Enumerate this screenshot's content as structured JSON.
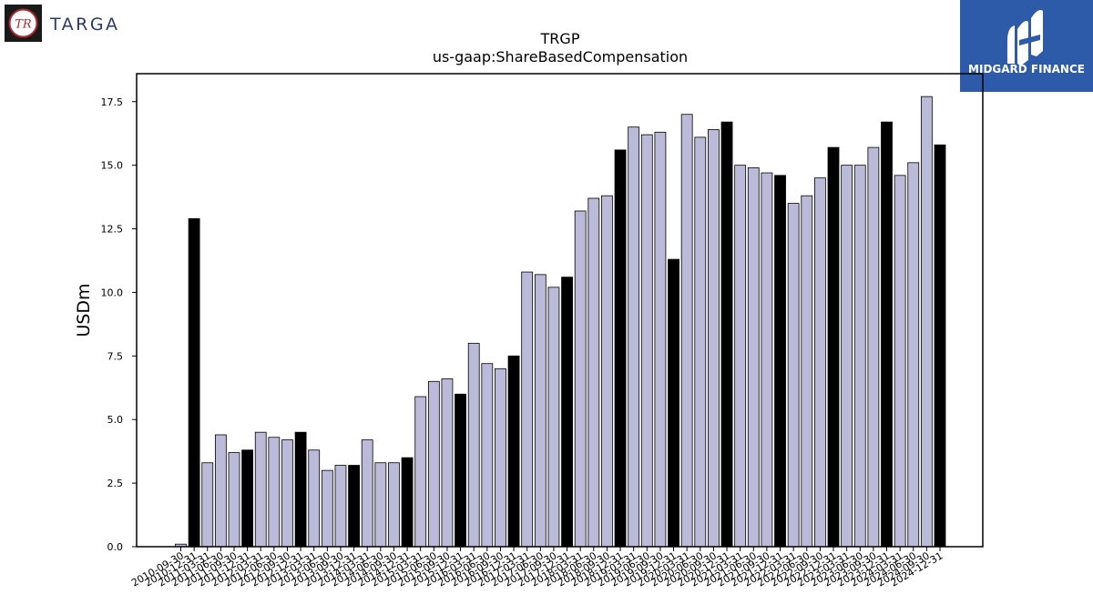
{
  "company_logo": {
    "monogram": "TR",
    "name": "TARGA"
  },
  "publisher_logo": {
    "name": "MIDGARD FINANCE"
  },
  "chart_data": {
    "type": "bar",
    "title": "TRGP",
    "subtitle": "us-gaap:ShareBasedCompensation",
    "ylabel": "USDm",
    "xlabel": "",
    "ylim": [
      0,
      18.6
    ],
    "yticks": [
      "0.0",
      "2.5",
      "5.0",
      "7.5",
      "10.0",
      "12.5",
      "15.0",
      "17.5"
    ],
    "grid": false,
    "colors": {
      "quarter": "#bcbad9",
      "year_end": "#000000"
    },
    "categories": [
      "2010-09-30",
      "2010-12-31",
      "2011-03-31",
      "2011-06-30",
      "2011-09-30",
      "2011-12-31",
      "2012-03-31",
      "2012-06-30",
      "2012-09-30",
      "2012-12-31",
      "2013-03-31",
      "2013-06-30",
      "2013-09-30",
      "2013-12-31",
      "2014-03-31",
      "2014-06-30",
      "2014-09-30",
      "2014-12-31",
      "2015-03-31",
      "2015-06-30",
      "2015-09-30",
      "2015-12-31",
      "2016-03-31",
      "2016-06-30",
      "2016-09-30",
      "2016-12-31",
      "2017-03-31",
      "2017-06-30",
      "2017-09-30",
      "2017-12-31",
      "2018-03-31",
      "2018-06-30",
      "2018-09-30",
      "2018-12-31",
      "2019-03-31",
      "2019-06-30",
      "2019-09-30",
      "2019-12-31",
      "2020-03-31",
      "2020-06-30",
      "2020-09-30",
      "2020-12-31",
      "2021-03-31",
      "2021-06-30",
      "2021-09-30",
      "2021-12-31",
      "2022-03-31",
      "2022-06-30",
      "2022-09-30",
      "2022-12-31",
      "2023-03-31",
      "2023-06-30",
      "2023-09-30",
      "2023-12-31",
      "2024-03-31",
      "2024-06-30",
      "2024-09-30",
      "2024-12-31"
    ],
    "values": [
      0.1,
      12.9,
      3.3,
      4.4,
      3.7,
      3.8,
      4.5,
      4.3,
      4.2,
      4.5,
      3.8,
      3.0,
      3.2,
      3.2,
      4.2,
      3.3,
      3.3,
      3.5,
      5.9,
      6.5,
      6.6,
      6.0,
      8.0,
      7.2,
      7.0,
      7.5,
      10.8,
      10.7,
      10.2,
      10.6,
      13.2,
      13.7,
      13.8,
      15.6,
      16.5,
      16.2,
      16.3,
      11.3,
      17.0,
      16.1,
      16.4,
      16.7,
      15.0,
      14.9,
      14.7,
      14.6,
      13.5,
      13.8,
      14.5,
      15.7,
      15.0,
      15.0,
      15.7,
      16.7,
      14.6,
      15.1,
      17.7,
      15.8
    ]
  }
}
